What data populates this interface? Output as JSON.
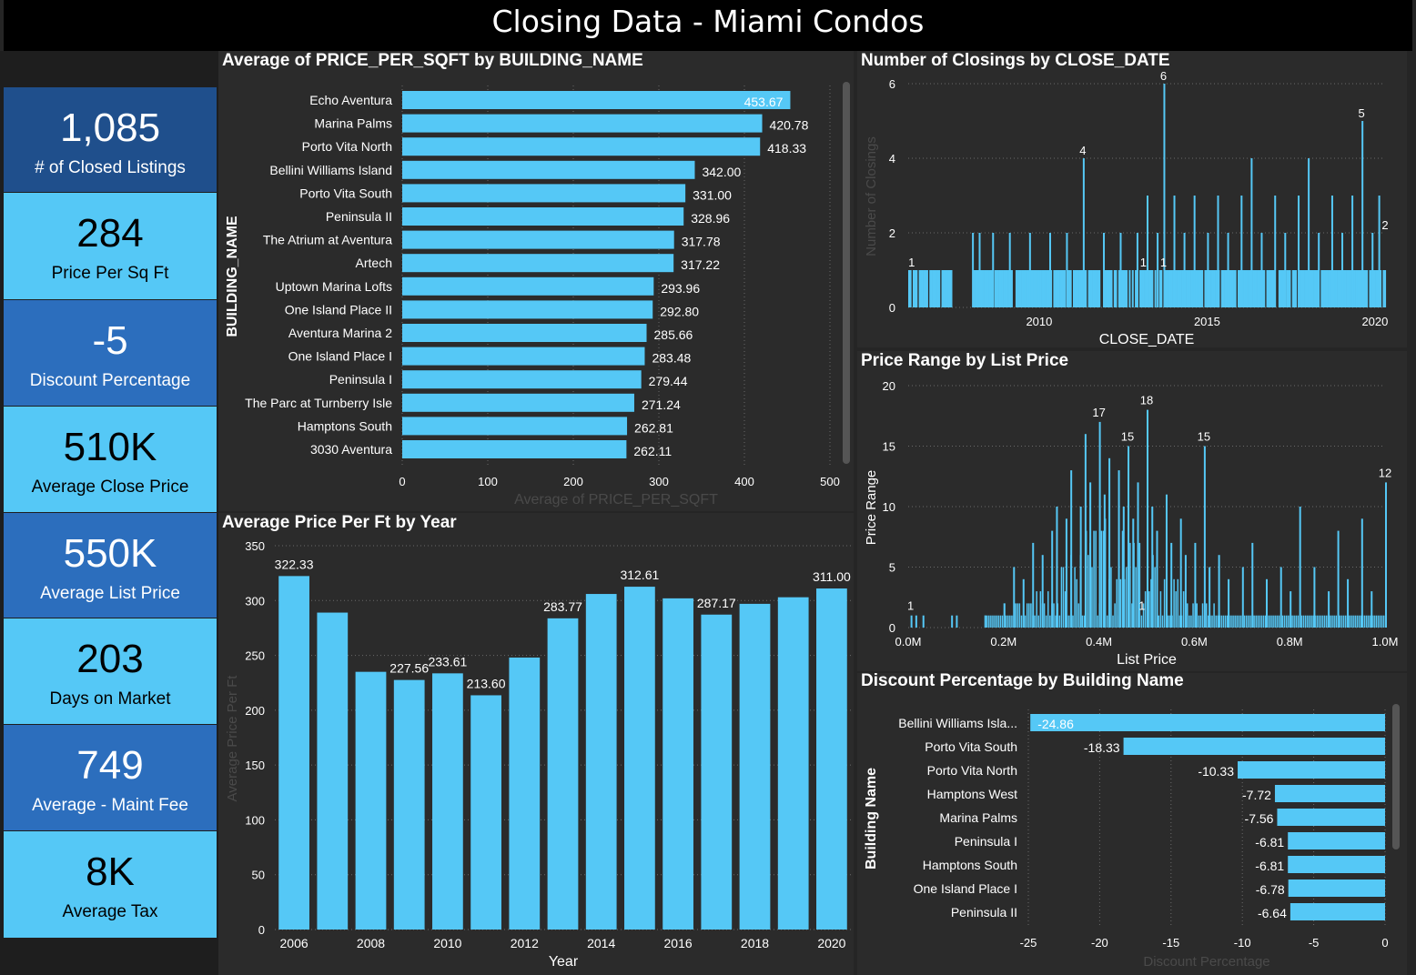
{
  "page": {
    "title": "Closing Data - Miami Condos"
  },
  "colors": {
    "bar": "#55c8f6",
    "panel": "#2b2b2b",
    "card_dark": "#1f4f8c",
    "card_mid": "#2c6ebd",
    "card_light": "#55c8f6"
  },
  "kpis": [
    {
      "value": "1,085",
      "label": "# of Closed Listings",
      "style": "dark"
    },
    {
      "value": "284",
      "label": "Price Per Sq Ft",
      "style": "light"
    },
    {
      "value": "-5",
      "label": "Discount Percentage",
      "style": "mid"
    },
    {
      "value": "510K",
      "label": "Average Close Price",
      "style": "light"
    },
    {
      "value": "550K",
      "label": "Average List Price",
      "style": "mid"
    },
    {
      "value": "203",
      "label": "Days on Market",
      "style": "light"
    },
    {
      "value": "749",
      "label": "Average - Maint Fee",
      "style": "mid"
    },
    {
      "value": "8K",
      "label": "Average Tax",
      "style": "light"
    }
  ],
  "chart_data": [
    {
      "type": "bar",
      "orientation": "horizontal",
      "title": "Average of PRICE_PER_SQFT by BUILDING_NAME",
      "xlabel": "Average of PRICE_PER_SQFT",
      "ylabel": "BUILDING_NAME",
      "xlim": [
        0,
        500
      ],
      "xticks": [
        "0",
        "100",
        "200",
        "300",
        "400",
        "500"
      ],
      "categories": [
        "Echo Aventura",
        "Marina Palms",
        "Porto Vita North",
        "Bellini Williams Island",
        "Porto Vita South",
        "Peninsula II",
        "The Atrium at Aventura",
        "Artech",
        "Uptown Marina Lofts",
        "One Island Place II",
        "Aventura Marina 2",
        "One Island Place I",
        "Peninsula I",
        "The Parc at Turnberry Isle",
        "Hamptons South",
        "3030 Aventura"
      ],
      "values": [
        453.67,
        420.78,
        418.33,
        342.0,
        331.0,
        328.96,
        317.78,
        317.22,
        293.96,
        292.8,
        285.66,
        283.48,
        279.44,
        271.24,
        262.81,
        262.11
      ],
      "labels": [
        "453.67",
        "420.78",
        "418.33",
        "342.00",
        "331.00",
        "328.96",
        "317.78",
        "317.22",
        "293.96",
        "292.80",
        "285.66",
        "283.48",
        "279.44",
        "271.24",
        "262.81",
        "262.11"
      ],
      "grid": true
    },
    {
      "type": "bar",
      "title": "Number of Closings by CLOSE_DATE",
      "xlabel": "CLOSE_DATE",
      "ylabel": "Number of Closings",
      "ylim": [
        0,
        6
      ],
      "yticks": [
        "0",
        "2",
        "4",
        "6"
      ],
      "xticks": [
        "2010",
        "2015",
        "2020"
      ],
      "xlim": [
        2006.1,
        2020.3
      ],
      "note_values": "daily closing counts; most days 1, with spikes",
      "spikes": [
        {
          "x": 2008.0,
          "y": 2
        },
        {
          "x": 2008.2,
          "y": 2
        },
        {
          "x": 2008.6,
          "y": 2
        },
        {
          "x": 2009.1,
          "y": 2
        },
        {
          "x": 2009.7,
          "y": 2
        },
        {
          "x": 2010.3,
          "y": 2
        },
        {
          "x": 2010.8,
          "y": 2
        },
        {
          "x": 2011.3,
          "y": 4
        },
        {
          "x": 2011.9,
          "y": 2
        },
        {
          "x": 2012.4,
          "y": 2
        },
        {
          "x": 2012.9,
          "y": 2
        },
        {
          "x": 2013.2,
          "y": 3
        },
        {
          "x": 2013.5,
          "y": 2
        },
        {
          "x": 2013.7,
          "y": 6
        },
        {
          "x": 2014.0,
          "y": 3
        },
        {
          "x": 2014.3,
          "y": 2
        },
        {
          "x": 2014.6,
          "y": 3
        },
        {
          "x": 2015.0,
          "y": 2
        },
        {
          "x": 2015.3,
          "y": 3
        },
        {
          "x": 2015.6,
          "y": 2
        },
        {
          "x": 2016.0,
          "y": 3
        },
        {
          "x": 2016.3,
          "y": 4
        },
        {
          "x": 2016.6,
          "y": 2
        },
        {
          "x": 2017.0,
          "y": 3
        },
        {
          "x": 2017.3,
          "y": 2
        },
        {
          "x": 2017.7,
          "y": 3
        },
        {
          "x": 2018.0,
          "y": 4
        },
        {
          "x": 2018.3,
          "y": 2
        },
        {
          "x": 2018.7,
          "y": 3
        },
        {
          "x": 2019.0,
          "y": 2
        },
        {
          "x": 2019.3,
          "y": 3
        },
        {
          "x": 2019.6,
          "y": 5
        },
        {
          "x": 2019.9,
          "y": 2
        },
        {
          "x": 2020.1,
          "y": 3
        }
      ],
      "annotations": [
        {
          "x": 2006.2,
          "y": 1,
          "text": "1"
        },
        {
          "x": 2011.3,
          "y": 4,
          "text": "4"
        },
        {
          "x": 2013.7,
          "y": 6,
          "text": "6"
        },
        {
          "x": 2013.1,
          "y": 1,
          "text": "1"
        },
        {
          "x": 2013.7,
          "y": 1,
          "text": "1"
        },
        {
          "x": 2019.6,
          "y": 5,
          "text": "5"
        },
        {
          "x": 2020.3,
          "y": 2,
          "text": "2"
        }
      ]
    },
    {
      "type": "bar",
      "title": "Price Range by List Price",
      "xlabel": "List Price",
      "ylabel": "Price Range",
      "ylim": [
        0,
        20
      ],
      "yticks": [
        "0",
        "5",
        "10",
        "15",
        "20"
      ],
      "xticks": [
        "0.0M",
        "0.2M",
        "0.4M",
        "0.6M",
        "0.8M",
        "1.0M"
      ],
      "xlim": [
        0.0,
        1.0
      ],
      "note_values": "count of listings per list-price bin",
      "peaks": [
        {
          "x": 0.005,
          "y": 1
        },
        {
          "x": 0.015,
          "y": 1
        },
        {
          "x": 0.03,
          "y": 1
        },
        {
          "x": 0.09,
          "y": 1
        },
        {
          "x": 0.1,
          "y": 1
        },
        {
          "x": 0.16,
          "y": 1
        },
        {
          "x": 0.2,
          "y": 2
        },
        {
          "x": 0.22,
          "y": 5
        },
        {
          "x": 0.24,
          "y": 4
        },
        {
          "x": 0.26,
          "y": 7
        },
        {
          "x": 0.28,
          "y": 6
        },
        {
          "x": 0.3,
          "y": 8
        },
        {
          "x": 0.31,
          "y": 10
        },
        {
          "x": 0.33,
          "y": 9
        },
        {
          "x": 0.34,
          "y": 13
        },
        {
          "x": 0.36,
          "y": 10
        },
        {
          "x": 0.37,
          "y": 16
        },
        {
          "x": 0.38,
          "y": 12
        },
        {
          "x": 0.4,
          "y": 17
        },
        {
          "x": 0.41,
          "y": 11
        },
        {
          "x": 0.42,
          "y": 14
        },
        {
          "x": 0.44,
          "y": 13
        },
        {
          "x": 0.45,
          "y": 10
        },
        {
          "x": 0.46,
          "y": 15
        },
        {
          "x": 0.47,
          "y": 9
        },
        {
          "x": 0.48,
          "y": 12
        },
        {
          "x": 0.5,
          "y": 18
        },
        {
          "x": 0.51,
          "y": 10
        },
        {
          "x": 0.52,
          "y": 8
        },
        {
          "x": 0.54,
          "y": 11
        },
        {
          "x": 0.55,
          "y": 7
        },
        {
          "x": 0.57,
          "y": 9
        },
        {
          "x": 0.58,
          "y": 6
        },
        {
          "x": 0.6,
          "y": 7
        },
        {
          "x": 0.62,
          "y": 15
        },
        {
          "x": 0.63,
          "y": 5
        },
        {
          "x": 0.65,
          "y": 6
        },
        {
          "x": 0.67,
          "y": 4
        },
        {
          "x": 0.7,
          "y": 5
        },
        {
          "x": 0.72,
          "y": 7
        },
        {
          "x": 0.75,
          "y": 4
        },
        {
          "x": 0.78,
          "y": 5
        },
        {
          "x": 0.8,
          "y": 3
        },
        {
          "x": 0.82,
          "y": 10
        },
        {
          "x": 0.85,
          "y": 5
        },
        {
          "x": 0.88,
          "y": 3
        },
        {
          "x": 0.9,
          "y": 8
        },
        {
          "x": 0.92,
          "y": 4
        },
        {
          "x": 0.95,
          "y": 9
        },
        {
          "x": 0.97,
          "y": 3
        },
        {
          "x": 1.0,
          "y": 12
        }
      ],
      "annotations": [
        {
          "x": 0.005,
          "y": 1,
          "text": "1"
        },
        {
          "x": 0.4,
          "y": 17,
          "text": "17"
        },
        {
          "x": 0.46,
          "y": 15,
          "text": "15"
        },
        {
          "x": 0.5,
          "y": 18,
          "text": "18"
        },
        {
          "x": 0.49,
          "y": 1,
          "text": "1"
        },
        {
          "x": 0.62,
          "y": 15,
          "text": "15"
        },
        {
          "x": 1.0,
          "y": 12,
          "text": "12"
        }
      ]
    },
    {
      "type": "bar",
      "title": "Average Price Per Ft by Year",
      "xlabel": "Year",
      "ylabel": "Average Price Per Ft",
      "ylim": [
        0,
        350
      ],
      "yticks": [
        "0",
        "50",
        "100",
        "150",
        "200",
        "250",
        "300",
        "350"
      ],
      "xticks": [
        "2006",
        "2008",
        "2010",
        "2012",
        "2014",
        "2016",
        "2018",
        "2020"
      ],
      "categories": [
        "2006",
        "2007",
        "2008",
        "2009",
        "2010",
        "2011",
        "2012",
        "2013",
        "2014",
        "2015",
        "2016",
        "2017",
        "2018",
        "2019",
        "2020"
      ],
      "values": [
        322.33,
        289,
        235,
        227.56,
        233.61,
        213.6,
        248,
        283.77,
        306,
        312.61,
        302,
        287.17,
        297,
        303,
        311.0
      ],
      "labels": [
        "322.33",
        "",
        "",
        "227.56",
        "233.61",
        "213.60",
        "",
        "283.77",
        "",
        "312.61",
        "",
        "287.17",
        "",
        "",
        "311.00"
      ],
      "grid": true
    },
    {
      "type": "bar",
      "orientation": "horizontal",
      "title": "Discount Percentage by Building Name",
      "xlabel": "Discount Percentage",
      "ylabel": "Building Name",
      "xlim": [
        -25,
        0
      ],
      "xticks": [
        "-25",
        "-20",
        "-15",
        "-10",
        "-5",
        "0"
      ],
      "categories": [
        "Bellini Williams Isla...",
        "Porto Vita South",
        "Porto Vita North",
        "Hamptons West",
        "Marina Palms",
        "Peninsula I",
        "Hamptons South",
        "One Island Place I",
        "Peninsula II"
      ],
      "values": [
        -24.86,
        -18.33,
        -10.33,
        -7.72,
        -7.56,
        -6.81,
        -6.81,
        -6.78,
        -6.64
      ],
      "labels": [
        "-24.86",
        "-18.33",
        "-10.33",
        "-7.72",
        "-7.56",
        "-6.81",
        "-6.81",
        "-6.78",
        "-6.64"
      ],
      "grid": true
    }
  ]
}
